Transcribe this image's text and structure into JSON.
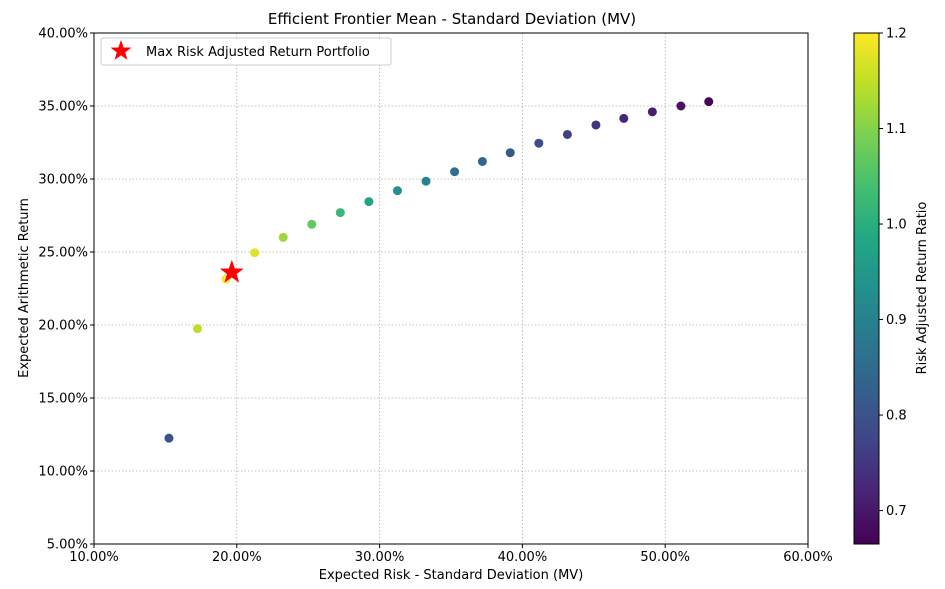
{
  "chart_data": {
    "type": "scatter",
    "title": "Efficient Frontier Mean - Standard Deviation (MV)",
    "xlabel": "Expected Risk - Standard Deviation (MV)",
    "ylabel": "Expected Arithmetic Return",
    "xlim": [
      0.1,
      0.6
    ],
    "ylim": [
      0.05,
      0.4
    ],
    "xticks": [
      0.1,
      0.2,
      0.3,
      0.4,
      0.5,
      0.6
    ],
    "xtick_labels": [
      "10.00%",
      "20.00%",
      "30.00%",
      "40.00%",
      "50.00%",
      "60.00%"
    ],
    "yticks": [
      0.05,
      0.1,
      0.15,
      0.2,
      0.25,
      0.3,
      0.35,
      0.4
    ],
    "ytick_labels": [
      "5.00%",
      "10.00%",
      "15.00%",
      "20.00%",
      "25.00%",
      "30.00%",
      "35.00%",
      "40.00%"
    ],
    "grid": true,
    "legend_placement": "top-left",
    "colormap": "viridis",
    "colorbar": {
      "label": "Risk Adjusted Return Ratio",
      "range": [
        0.665,
        1.2
      ],
      "ticks": [
        0.7,
        0.8,
        0.9,
        1.0,
        1.1,
        1.2
      ],
      "tick_labels": [
        "0.7",
        "0.8",
        "0.9",
        "1.0",
        "1.1",
        "1.2"
      ]
    },
    "points": [
      {
        "x": 0.1525,
        "y": 0.1225,
        "ratio": 0.8
      },
      {
        "x": 0.1725,
        "y": 0.1975,
        "ratio": 1.145
      },
      {
        "x": 0.1925,
        "y": 0.2315,
        "ratio": 1.2
      },
      {
        "x": 0.2125,
        "y": 0.2495,
        "ratio": 1.175
      },
      {
        "x": 0.2325,
        "y": 0.26,
        "ratio": 1.12
      },
      {
        "x": 0.2525,
        "y": 0.269,
        "ratio": 1.07
      },
      {
        "x": 0.2725,
        "y": 0.277,
        "ratio": 1.02
      },
      {
        "x": 0.2925,
        "y": 0.2845,
        "ratio": 0.975
      },
      {
        "x": 0.3125,
        "y": 0.292,
        "ratio": 0.935
      },
      {
        "x": 0.3325,
        "y": 0.2985,
        "ratio": 0.9
      },
      {
        "x": 0.3525,
        "y": 0.305,
        "ratio": 0.865
      },
      {
        "x": 0.372,
        "y": 0.312,
        "ratio": 0.84
      },
      {
        "x": 0.3915,
        "y": 0.318,
        "ratio": 0.81
      },
      {
        "x": 0.4115,
        "y": 0.3245,
        "ratio": 0.79
      },
      {
        "x": 0.4315,
        "y": 0.3305,
        "ratio": 0.765
      },
      {
        "x": 0.4515,
        "y": 0.337,
        "ratio": 0.745
      },
      {
        "x": 0.471,
        "y": 0.3415,
        "ratio": 0.725
      },
      {
        "x": 0.491,
        "y": 0.346,
        "ratio": 0.71
      },
      {
        "x": 0.511,
        "y": 0.35,
        "ratio": 0.69
      },
      {
        "x": 0.5305,
        "y": 0.353,
        "ratio": 0.67
      }
    ],
    "highlight": {
      "name": "Max Risk Adjusted Return Portfolio",
      "x": 0.1965,
      "y": 0.236,
      "marker": "star",
      "color": "#ff0000"
    }
  }
}
